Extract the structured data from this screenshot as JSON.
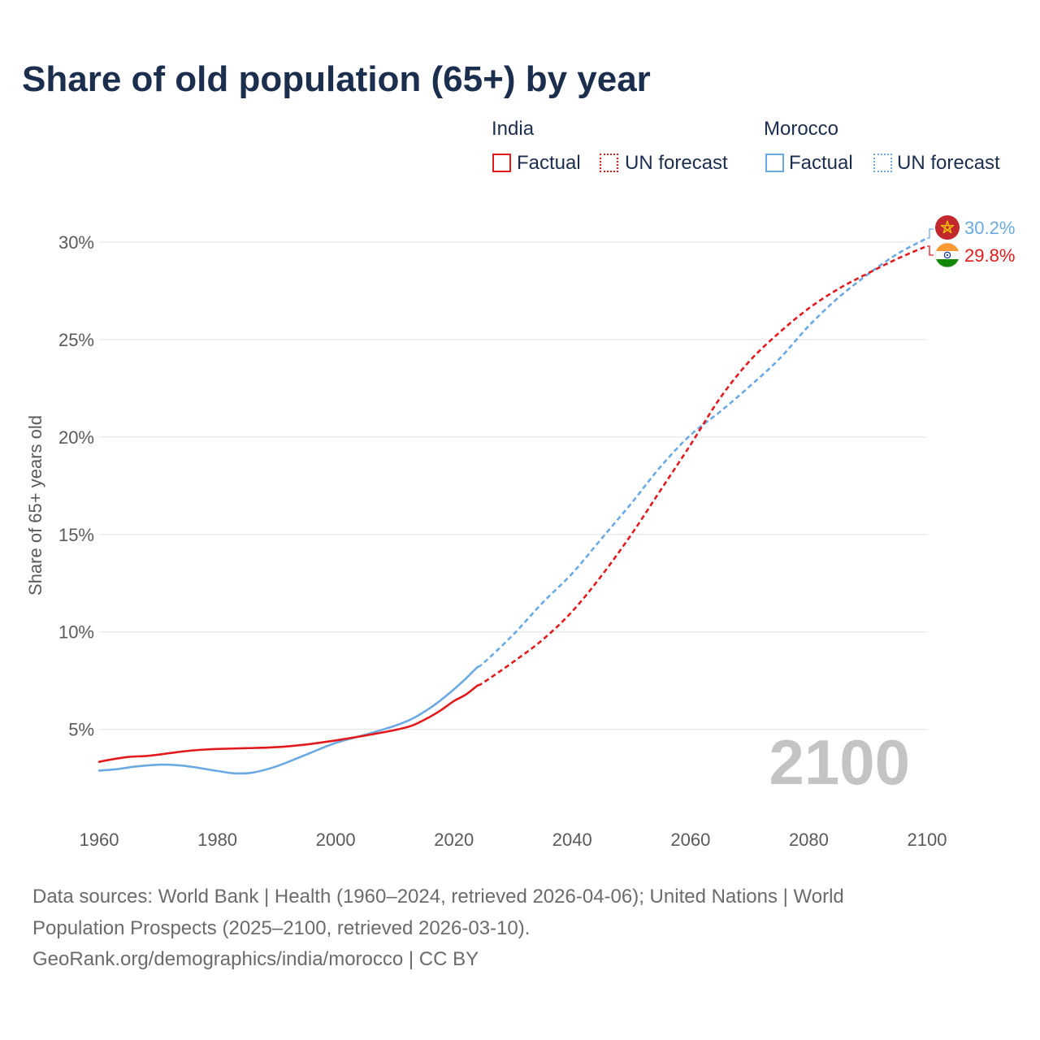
{
  "chart_data": {
    "type": "line",
    "title": "Share of old population (65+) by year",
    "ylabel": "Share of 65+ years old",
    "xlim": [
      1960,
      2100
    ],
    "ylim": [
      0,
      30
    ],
    "grid": true,
    "year_label": "2100",
    "legend_labels": {
      "factual": "Factual",
      "forecast": "UN forecast"
    },
    "x_ticks": [
      {
        "value": 1960,
        "label": "1960"
      },
      {
        "value": 1980,
        "label": "1980"
      },
      {
        "value": 2000,
        "label": "2000"
      },
      {
        "value": 2020,
        "label": "2020"
      },
      {
        "value": 2040,
        "label": "2040"
      },
      {
        "value": 2060,
        "label": "2060"
      },
      {
        "value": 2080,
        "label": "2080"
      },
      {
        "value": 2100,
        "label": "2100"
      }
    ],
    "y_ticks": [
      {
        "value": 5,
        "label": "5%"
      },
      {
        "value": 10,
        "label": "10%"
      },
      {
        "value": 15,
        "label": "15%"
      },
      {
        "value": 20,
        "label": "20%"
      },
      {
        "value": 25,
        "label": "25%"
      },
      {
        "value": 30,
        "label": "30%"
      }
    ],
    "series": [
      {
        "name": "India",
        "color": "#e31a1c",
        "end_label": "29.8%",
        "factual": {
          "x": [
            1960,
            1962,
            1965,
            1968,
            1970,
            1973,
            1976,
            1980,
            1985,
            1990,
            1995,
            2000,
            2005,
            2010,
            2013,
            2016,
            2018,
            2020,
            2022,
            2024
          ],
          "y": [
            3.33,
            3.45,
            3.58,
            3.63,
            3.7,
            3.82,
            3.92,
            3.99,
            4.03,
            4.08,
            4.22,
            4.43,
            4.68,
            4.96,
            5.2,
            5.65,
            6.02,
            6.45,
            6.78,
            7.25
          ]
        },
        "forecast": {
          "x": [
            2024,
            2025,
            2030,
            2035,
            2040,
            2045,
            2050,
            2055,
            2060,
            2065,
            2070,
            2075,
            2080,
            2085,
            2090,
            2095,
            2100
          ],
          "y": [
            7.25,
            7.4,
            8.45,
            9.6,
            11.05,
            12.9,
            15.0,
            17.3,
            19.6,
            22.0,
            23.9,
            25.35,
            26.6,
            27.6,
            28.4,
            29.15,
            29.8
          ]
        }
      },
      {
        "name": "Morocco",
        "color": "#6aa9e3",
        "end_label": "30.2%",
        "factual": {
          "x": [
            1960,
            1963,
            1966,
            1970,
            1973,
            1976,
            1980,
            1983,
            1986,
            1990,
            1995,
            2000,
            2005,
            2010,
            2013,
            2016,
            2018,
            2020,
            2022,
            2024
          ],
          "y": [
            2.88,
            2.95,
            3.08,
            3.18,
            3.16,
            3.06,
            2.86,
            2.74,
            2.78,
            3.1,
            3.7,
            4.3,
            4.72,
            5.18,
            5.55,
            6.1,
            6.55,
            7.05,
            7.6,
            8.2
          ]
        },
        "forecast": {
          "x": [
            2024,
            2025,
            2030,
            2035,
            2040,
            2045,
            2050,
            2055,
            2060,
            2065,
            2070,
            2075,
            2080,
            2085,
            2090,
            2095,
            2100
          ],
          "y": [
            8.2,
            8.4,
            9.85,
            11.5,
            13.0,
            14.8,
            16.6,
            18.5,
            20.1,
            21.3,
            22.6,
            24.0,
            25.7,
            27.15,
            28.35,
            29.4,
            30.2
          ]
        }
      }
    ]
  },
  "footer": {
    "sources_line1": "Data sources: World Bank | Health (1960–2024, retrieved 2026-04-06); United Nations | World",
    "sources_line2": "Population Prospects (2025–2100, retrieved 2026-03-10).",
    "credit": "GeoRank.org/demographics/india/morocco | CC BY"
  }
}
